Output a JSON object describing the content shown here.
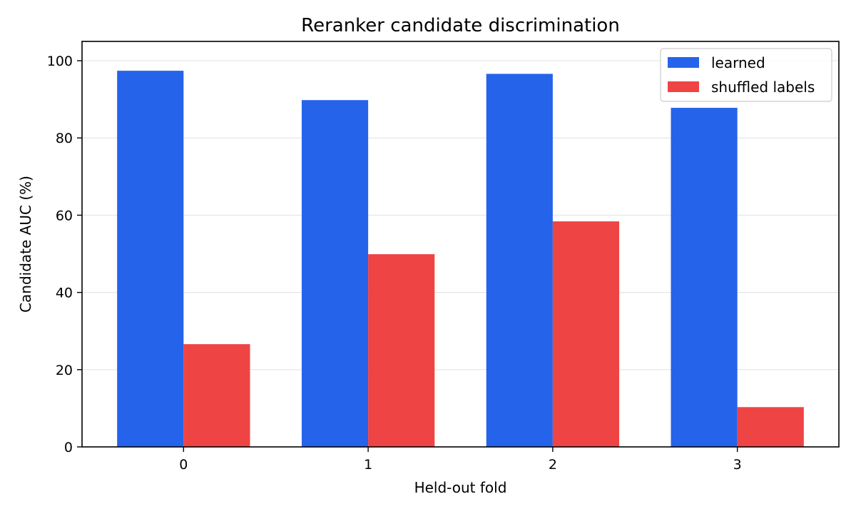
{
  "chart_data": {
    "type": "bar",
    "title": "Reranker candidate discrimination",
    "xlabel": "Held-out fold",
    "ylabel": "Candidate AUC (%)",
    "categories": [
      "0",
      "1",
      "2",
      "3"
    ],
    "series": [
      {
        "name": "learned",
        "color": "#2563eb",
        "values": [
          97.4,
          89.8,
          96.6,
          87.8
        ]
      },
      {
        "name": "shuffled labels",
        "color": "#ef4444",
        "values": [
          26.6,
          49.9,
          58.4,
          10.3
        ]
      }
    ],
    "ylim": [
      0,
      105
    ],
    "yticks": [
      0,
      20,
      40,
      60,
      80,
      100
    ],
    "grid": "y-axis, light gray",
    "legend": "top-right"
  }
}
